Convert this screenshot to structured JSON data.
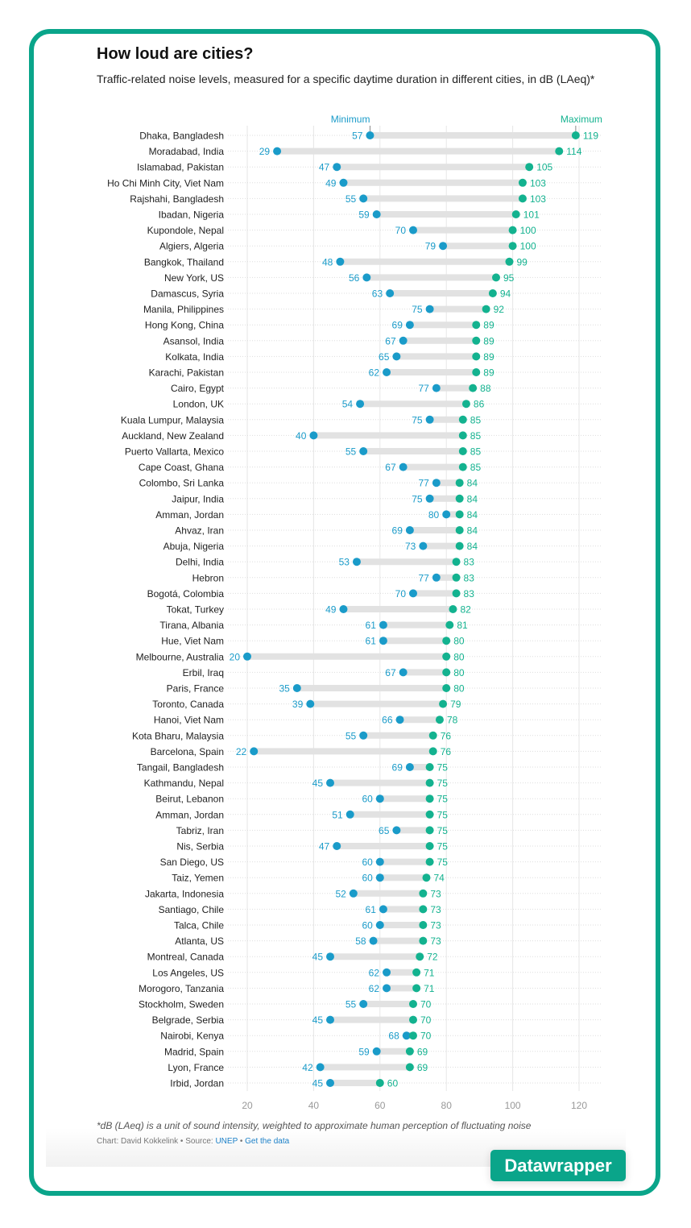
{
  "header": {
    "title": "How loud are cities?",
    "subtitle": "Traffic-related noise levels, measured for a specific daytime duration in different cities, in dB (LAeq)*"
  },
  "footer": {
    "note": "*dB (LAeq) is a unit of sound intensity, weighted to approximate human perception of fluctuating noise",
    "credit_prefix": "Chart: David Kokkelink • Source: ",
    "source_link": "UNEP",
    "separator": " • ",
    "data_link": "Get the data",
    "badge": "Datawrapper"
  },
  "colors": {
    "min": "#1a9bc9",
    "max": "#13b28f",
    "bar": "#e2e2e2",
    "border": "#0aa58a"
  },
  "chart_data": {
    "type": "dot-range",
    "title": "How loud are cities?",
    "xlim": [
      20,
      125
    ],
    "xticks": [
      20,
      40,
      60,
      80,
      100,
      120
    ],
    "legend": {
      "min": "Minimum",
      "max": "Maximum"
    },
    "series": [
      {
        "name": "Minimum"
      },
      {
        "name": "Maximum"
      }
    ],
    "rows": [
      [
        "Dhaka, Bangladesh",
        57,
        119
      ],
      [
        "Moradabad, India",
        29,
        114
      ],
      [
        "Islamabad, Pakistan",
        47,
        105
      ],
      [
        "Ho Chi Minh City, Viet Nam",
        49,
        103
      ],
      [
        "Rajshahi, Bangladesh",
        55,
        103
      ],
      [
        "Ibadan, Nigeria",
        59,
        101
      ],
      [
        "Kupondole, Nepal",
        70,
        100
      ],
      [
        "Algiers, Algeria",
        79,
        100
      ],
      [
        "Bangkok, Thailand",
        48,
        99
      ],
      [
        "New York, US",
        56,
        95
      ],
      [
        "Damascus, Syria",
        63,
        94
      ],
      [
        "Manila, Philippines",
        75,
        92
      ],
      [
        "Hong Kong, China",
        69,
        89
      ],
      [
        "Asansol, India",
        67,
        89
      ],
      [
        "Kolkata, India",
        65,
        89
      ],
      [
        "Karachi, Pakistan",
        62,
        89
      ],
      [
        "Cairo, Egypt",
        77,
        88
      ],
      [
        "London, UK",
        54,
        86
      ],
      [
        "Kuala Lumpur, Malaysia",
        75,
        85
      ],
      [
        "Auckland, New Zealand",
        40,
        85
      ],
      [
        "Puerto Vallarta, Mexico",
        55,
        85
      ],
      [
        "Cape Coast, Ghana",
        67,
        85
      ],
      [
        "Colombo, Sri Lanka",
        77,
        84
      ],
      [
        "Jaipur, India",
        75,
        84
      ],
      [
        "Amman, Jordan",
        80,
        84
      ],
      [
        "Ahvaz, Iran",
        69,
        84
      ],
      [
        "Abuja, Nigeria",
        73,
        84
      ],
      [
        "Delhi, India",
        53,
        83
      ],
      [
        "Hebron",
        77,
        83
      ],
      [
        "Bogotá, Colombia",
        70,
        83
      ],
      [
        "Tokat, Turkey",
        49,
        82
      ],
      [
        "Tirana, Albania",
        61,
        81
      ],
      [
        "Hue, Viet Nam",
        61,
        80
      ],
      [
        "Melbourne, Australia",
        20,
        80
      ],
      [
        "Erbil, Iraq",
        67,
        80
      ],
      [
        "Paris, France",
        35,
        80
      ],
      [
        "Toronto, Canada",
        39,
        79
      ],
      [
        "Hanoi, Viet Nam",
        66,
        78
      ],
      [
        "Kota Bharu, Malaysia",
        55,
        76
      ],
      [
        "Barcelona, Spain",
        22,
        76
      ],
      [
        "Tangail, Bangladesh",
        69,
        75
      ],
      [
        "Kathmandu, Nepal",
        45,
        75
      ],
      [
        "Beirut, Lebanon",
        60,
        75
      ],
      [
        "Amman, Jordan",
        51,
        75
      ],
      [
        "Tabriz, Iran",
        65,
        75
      ],
      [
        "Nis, Serbia",
        47,
        75
      ],
      [
        "San Diego, US",
        60,
        75
      ],
      [
        "Taiz, Yemen",
        60,
        74
      ],
      [
        "Jakarta, Indonesia",
        52,
        73
      ],
      [
        "Santiago, Chile",
        61,
        73
      ],
      [
        "Talca, Chile",
        60,
        73
      ],
      [
        "Atlanta, US",
        58,
        73
      ],
      [
        "Montreal, Canada",
        45,
        72
      ],
      [
        "Los Angeles, US",
        62,
        71
      ],
      [
        "Morogoro, Tanzania",
        62,
        71
      ],
      [
        "Stockholm, Sweden",
        55,
        70
      ],
      [
        "Belgrade, Serbia",
        45,
        70
      ],
      [
        "Nairobi, Kenya",
        68,
        70
      ],
      [
        "Madrid, Spain",
        59,
        69
      ],
      [
        "Lyon, France",
        42,
        69
      ],
      [
        "Irbid, Jordan",
        45,
        60
      ]
    ]
  }
}
